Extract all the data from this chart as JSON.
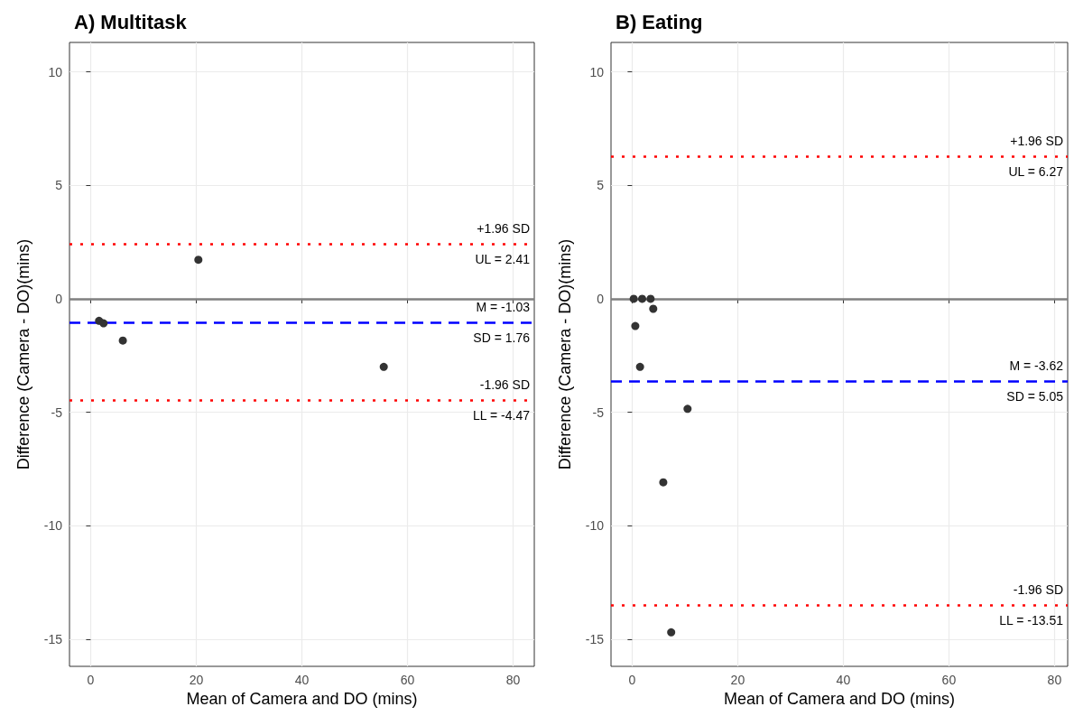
{
  "chart_data": [
    {
      "type": "scatter",
      "title": "A) Multitask",
      "xlabel": "Mean of Camera and DO (mins)",
      "ylabel": "Difference (Camera - DO)(mins)",
      "x": [
        1.6,
        2.45,
        6.1,
        20.4,
        55.5
      ],
      "values": [
        -0.97,
        -1.08,
        -1.84,
        1.72,
        -3.0
      ],
      "color": "#333333",
      "marker": "circle",
      "xlim": [
        -4,
        84
      ],
      "xticks": [
        0,
        20,
        40,
        60,
        80
      ],
      "ylim": [
        -16.2,
        11.3
      ],
      "yticks": [
        -15,
        -10,
        -5,
        0,
        5,
        10
      ],
      "grid": true,
      "ref_lines": [
        {
          "axis": "y",
          "value": 0,
          "label": null,
          "color": "#7f7f7f",
          "line_style": "solid"
        },
        {
          "axis": "y",
          "value": 2.41,
          "label": "+1.96 SD\nUL = 2.41",
          "color": "#ff0000",
          "line_style": "dotted"
        },
        {
          "axis": "y",
          "value": -1.03,
          "label": "M = -1.03\nSD = 1.76",
          "color": "#0000ff",
          "line_style": "dashed"
        },
        {
          "axis": "y",
          "value": -4.47,
          "label": "-1.96 SD\nLL = -4.47",
          "color": "#ff0000",
          "line_style": "dotted"
        }
      ]
    },
    {
      "type": "scatter",
      "title": "B) Eating",
      "xlabel": "Mean of Camera and DO (mins)",
      "ylabel": "Difference (Camera - DO)(mins)",
      "x": [
        0.3,
        1.9,
        3.5,
        4.0,
        0.6,
        1.5,
        5.9,
        10.5,
        7.4
      ],
      "values": [
        0,
        0,
        0,
        -0.44,
        -1.2,
        -3.0,
        -8.09,
        -4.85,
        -14.7
      ],
      "color": "#333333",
      "marker": "circle",
      "xlim": [
        -4,
        82.5
      ],
      "xticks": [
        0,
        20,
        40,
        60,
        80
      ],
      "ylim": [
        -16.2,
        11.3
      ],
      "yticks": [
        -15,
        -10,
        -5,
        0,
        5,
        10
      ],
      "grid": true,
      "ref_lines": [
        {
          "axis": "y",
          "value": 0,
          "label": null,
          "color": "#7f7f7f",
          "line_style": "solid"
        },
        {
          "axis": "y",
          "value": 6.27,
          "label": "+1.96 SD\nUL = 6.27",
          "color": "#ff0000",
          "line_style": "dotted"
        },
        {
          "axis": "y",
          "value": -3.62,
          "label": "M = -3.62\nSD = 5.05",
          "color": "#0000ff",
          "line_style": "dashed"
        },
        {
          "axis": "y",
          "value": -13.51,
          "label": "-1.96 SD\nLL = -13.51",
          "color": "#ff0000",
          "line_style": "dotted"
        }
      ]
    }
  ]
}
